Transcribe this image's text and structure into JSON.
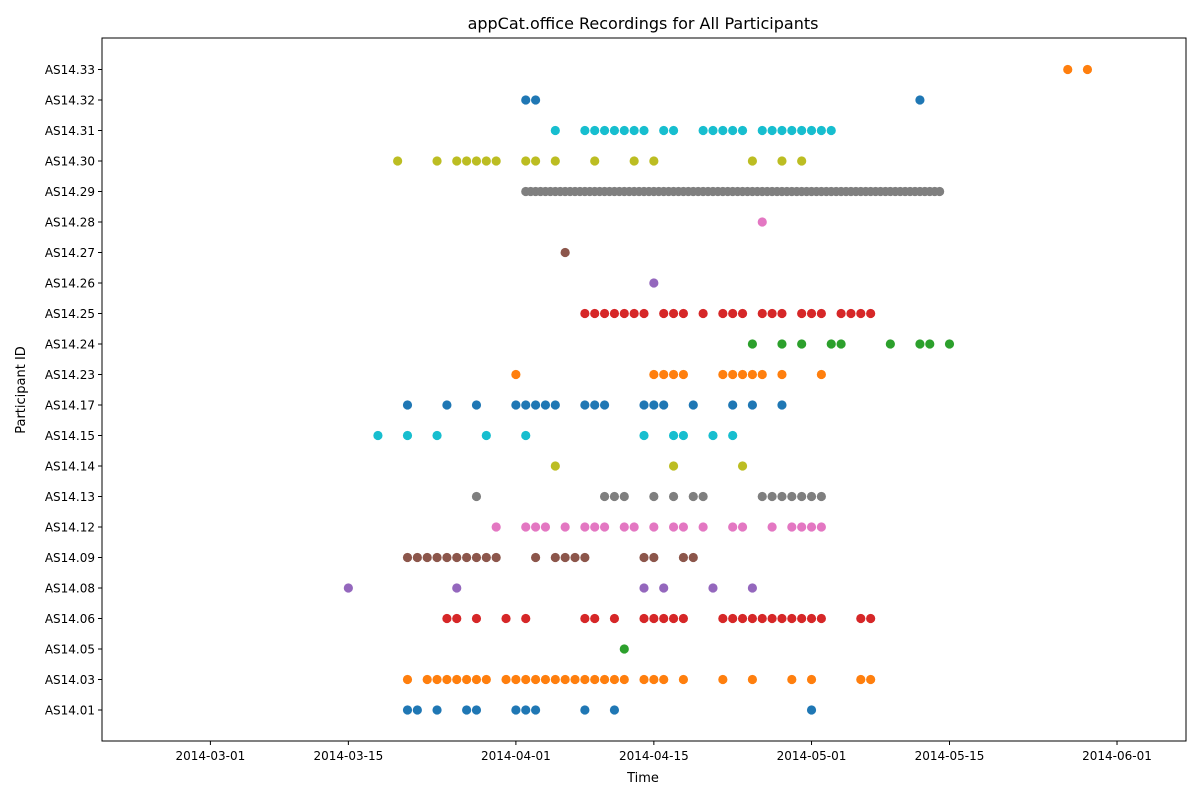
{
  "chart_data": {
    "type": "scatter",
    "title": "appCat.office Recordings for All Participants",
    "xlabel": "Time",
    "ylabel": "Participant ID",
    "x_axis": "date",
    "xlim": [
      "2014-02-18",
      "2014-06-08"
    ],
    "x_ticks": [
      "2014-03-01",
      "2014-03-15",
      "2014-04-01",
      "2014-04-15",
      "2014-05-01",
      "2014-05-15",
      "2014-06-01"
    ],
    "categories": [
      "AS14.01",
      "AS14.03",
      "AS14.05",
      "AS14.06",
      "AS14.08",
      "AS14.09",
      "AS14.12",
      "AS14.13",
      "AS14.14",
      "AS14.15",
      "AS14.17",
      "AS14.23",
      "AS14.24",
      "AS14.25",
      "AS14.26",
      "AS14.27",
      "AS14.28",
      "AS14.29",
      "AS14.30",
      "AS14.31",
      "AS14.32",
      "AS14.33"
    ],
    "grid": false,
    "series": [
      {
        "category": "AS14.01",
        "color": "#1f77b4",
        "x": [
          "2014-03-21",
          "2014-03-22",
          "2014-03-24",
          "2014-03-27",
          "2014-03-28",
          "2014-04-01",
          "2014-04-02",
          "2014-04-03",
          "2014-04-08",
          "2014-04-11",
          "2014-05-01"
        ]
      },
      {
        "category": "AS14.03",
        "color": "#ff7f0e",
        "x": [
          "2014-03-21",
          "2014-03-23",
          "2014-03-24",
          "2014-03-25",
          "2014-03-26",
          "2014-03-27",
          "2014-03-28",
          "2014-03-29",
          "2014-03-31",
          "2014-04-01",
          "2014-04-02",
          "2014-04-03",
          "2014-04-04",
          "2014-04-05",
          "2014-04-06",
          "2014-04-07",
          "2014-04-08",
          "2014-04-09",
          "2014-04-10",
          "2014-04-11",
          "2014-04-12",
          "2014-04-14",
          "2014-04-15",
          "2014-04-16",
          "2014-04-18",
          "2014-04-22",
          "2014-04-25",
          "2014-04-29",
          "2014-05-01",
          "2014-05-06",
          "2014-05-07"
        ]
      },
      {
        "category": "AS14.05",
        "color": "#2ca02c",
        "x": [
          "2014-04-12"
        ]
      },
      {
        "category": "AS14.06",
        "color": "#d62728",
        "x": [
          "2014-03-25",
          "2014-03-26",
          "2014-03-28",
          "2014-03-31",
          "2014-04-02",
          "2014-04-08",
          "2014-04-09",
          "2014-04-11",
          "2014-04-14",
          "2014-04-15",
          "2014-04-16",
          "2014-04-17",
          "2014-04-18",
          "2014-04-22",
          "2014-04-23",
          "2014-04-24",
          "2014-04-25",
          "2014-04-26",
          "2014-04-27",
          "2014-04-28",
          "2014-04-29",
          "2014-04-30",
          "2014-05-01",
          "2014-05-02",
          "2014-05-06",
          "2014-05-07"
        ]
      },
      {
        "category": "AS14.08",
        "color": "#9467bd",
        "x": [
          "2014-03-15",
          "2014-03-26",
          "2014-04-14",
          "2014-04-16",
          "2014-04-21",
          "2014-04-25"
        ]
      },
      {
        "category": "AS14.09",
        "color": "#8c564b",
        "x": [
          "2014-03-21",
          "2014-03-22",
          "2014-03-23",
          "2014-03-24",
          "2014-03-25",
          "2014-03-26",
          "2014-03-27",
          "2014-03-28",
          "2014-03-29",
          "2014-03-30",
          "2014-04-03",
          "2014-04-05",
          "2014-04-06",
          "2014-04-07",
          "2014-04-08",
          "2014-04-14",
          "2014-04-15",
          "2014-04-18",
          "2014-04-19"
        ]
      },
      {
        "category": "AS14.12",
        "color": "#e377c2",
        "x": [
          "2014-03-30",
          "2014-04-02",
          "2014-04-03",
          "2014-04-04",
          "2014-04-06",
          "2014-04-08",
          "2014-04-09",
          "2014-04-10",
          "2014-04-12",
          "2014-04-13",
          "2014-04-15",
          "2014-04-17",
          "2014-04-18",
          "2014-04-20",
          "2014-04-23",
          "2014-04-24",
          "2014-04-27",
          "2014-04-29",
          "2014-04-30",
          "2014-05-01",
          "2014-05-02"
        ]
      },
      {
        "category": "AS14.13",
        "color": "#7f7f7f",
        "x": [
          "2014-03-28",
          "2014-04-10",
          "2014-04-11",
          "2014-04-12",
          "2014-04-15",
          "2014-04-17",
          "2014-04-19",
          "2014-04-20",
          "2014-04-26",
          "2014-04-27",
          "2014-04-28",
          "2014-04-29",
          "2014-04-30",
          "2014-05-01",
          "2014-05-02"
        ]
      },
      {
        "category": "AS14.14",
        "color": "#bcbd22",
        "x": [
          "2014-04-05",
          "2014-04-17",
          "2014-04-24"
        ]
      },
      {
        "category": "AS14.15",
        "color": "#17becf",
        "x": [
          "2014-03-18",
          "2014-03-21",
          "2014-03-24",
          "2014-03-29",
          "2014-04-02",
          "2014-04-14",
          "2014-04-17",
          "2014-04-18",
          "2014-04-21",
          "2014-04-23"
        ]
      },
      {
        "category": "AS14.17",
        "color": "#1f77b4",
        "x": [
          "2014-03-21",
          "2014-03-25",
          "2014-03-28",
          "2014-04-01",
          "2014-04-02",
          "2014-04-03",
          "2014-04-04",
          "2014-04-05",
          "2014-04-08",
          "2014-04-09",
          "2014-04-10",
          "2014-04-14",
          "2014-04-15",
          "2014-04-16",
          "2014-04-19",
          "2014-04-23",
          "2014-04-25",
          "2014-04-28"
        ]
      },
      {
        "category": "AS14.23",
        "color": "#ff7f0e",
        "x": [
          "2014-04-01",
          "2014-04-15",
          "2014-04-16",
          "2014-04-17",
          "2014-04-18",
          "2014-04-22",
          "2014-04-23",
          "2014-04-24",
          "2014-04-25",
          "2014-04-26",
          "2014-04-28",
          "2014-05-02"
        ]
      },
      {
        "category": "AS14.24",
        "color": "#2ca02c",
        "x": [
          "2014-04-25",
          "2014-04-28",
          "2014-04-30",
          "2014-05-03",
          "2014-05-04",
          "2014-05-09",
          "2014-05-12",
          "2014-05-13",
          "2014-05-15"
        ]
      },
      {
        "category": "AS14.25",
        "color": "#d62728",
        "x": [
          "2014-04-08",
          "2014-04-09",
          "2014-04-10",
          "2014-04-11",
          "2014-04-12",
          "2014-04-13",
          "2014-04-14",
          "2014-04-16",
          "2014-04-17",
          "2014-04-18",
          "2014-04-20",
          "2014-04-22",
          "2014-04-23",
          "2014-04-24",
          "2014-04-26",
          "2014-04-27",
          "2014-04-28",
          "2014-04-30",
          "2014-05-01",
          "2014-05-02",
          "2014-05-04",
          "2014-05-05",
          "2014-05-06",
          "2014-05-07"
        ]
      },
      {
        "category": "AS14.26",
        "color": "#9467bd",
        "x": [
          "2014-04-15"
        ]
      },
      {
        "category": "AS14.27",
        "color": "#8c564b",
        "x": [
          "2014-04-06"
        ]
      },
      {
        "category": "AS14.28",
        "color": "#e377c2",
        "x": [
          "2014-04-26"
        ]
      },
      {
        "category": "AS14.29",
        "color": "#7f7f7f",
        "x_range": [
          "2014-04-02",
          "2014-05-14"
        ]
      },
      {
        "category": "AS14.30",
        "color": "#bcbd22",
        "x": [
          "2014-03-20",
          "2014-03-24",
          "2014-03-26",
          "2014-03-27",
          "2014-03-28",
          "2014-03-29",
          "2014-03-30",
          "2014-04-02",
          "2014-04-03",
          "2014-04-05",
          "2014-04-09",
          "2014-04-13",
          "2014-04-15",
          "2014-04-25",
          "2014-04-28",
          "2014-04-30"
        ]
      },
      {
        "category": "AS14.31",
        "color": "#17becf",
        "x": [
          "2014-04-05",
          "2014-04-08",
          "2014-04-09",
          "2014-04-10",
          "2014-04-11",
          "2014-04-12",
          "2014-04-13",
          "2014-04-14",
          "2014-04-16",
          "2014-04-17",
          "2014-04-20",
          "2014-04-21",
          "2014-04-22",
          "2014-04-23",
          "2014-04-24",
          "2014-04-26",
          "2014-04-27",
          "2014-04-28",
          "2014-04-29",
          "2014-04-30",
          "2014-05-01",
          "2014-05-02",
          "2014-05-03"
        ]
      },
      {
        "category": "AS14.32",
        "color": "#1f77b4",
        "x": [
          "2014-04-02",
          "2014-04-03",
          "2014-05-12"
        ]
      },
      {
        "category": "AS14.33",
        "color": "#ff7f0e",
        "x": [
          "2014-05-27",
          "2014-05-29"
        ]
      }
    ]
  }
}
